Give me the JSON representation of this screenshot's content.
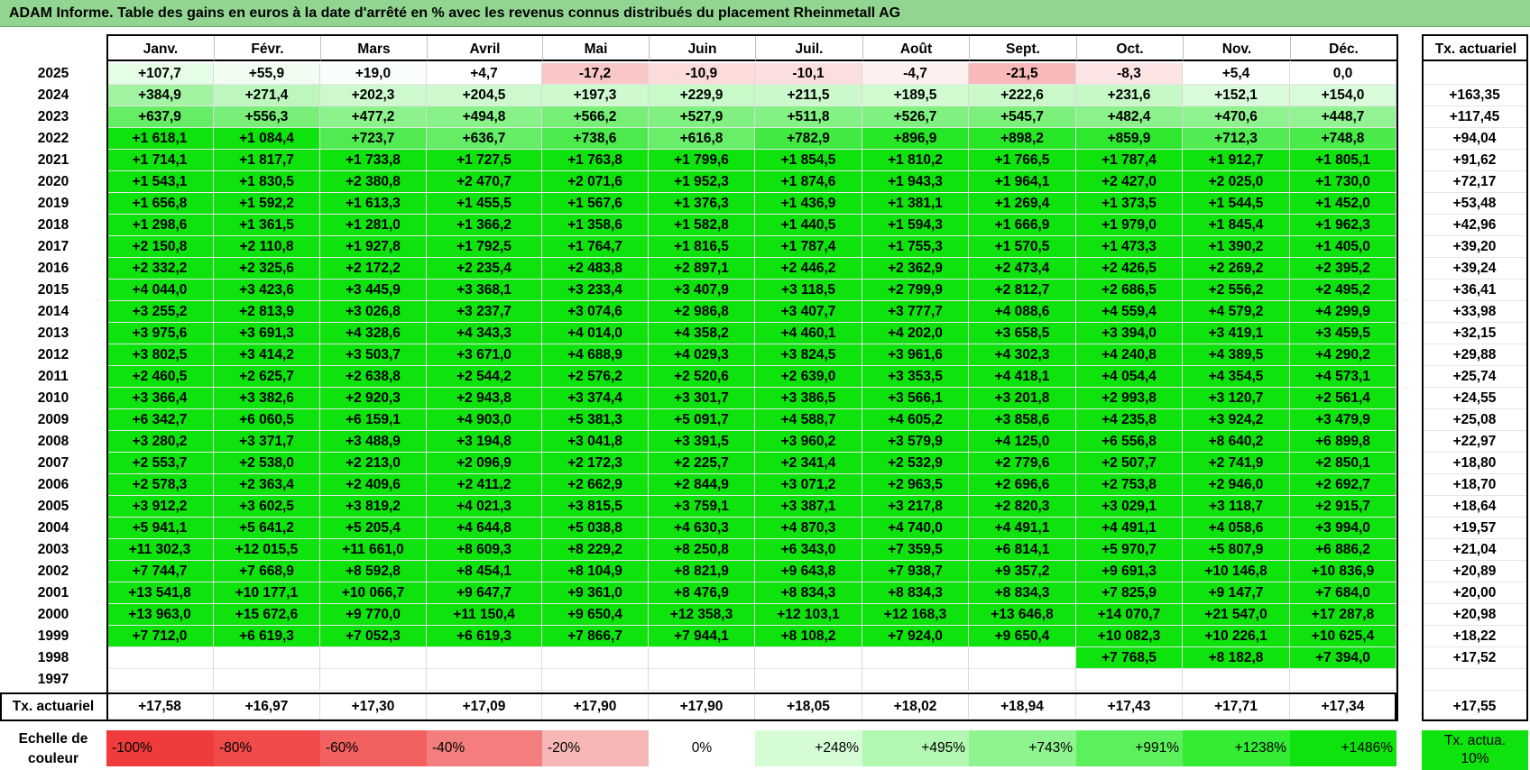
{
  "title": "ADAM Informe. Table des gains en euros à la date d'arrêté en % avec les revenus connus distribués du placement Rheinmetall AG",
  "months": [
    "Janv.",
    "Févr.",
    "Mars",
    "Avril",
    "Mai",
    "Juin",
    "Juil.",
    "Août",
    "Sept.",
    "Oct.",
    "Nov.",
    "Déc."
  ],
  "rate_header": "Tx. actuariel",
  "rows": [
    {
      "year": "2025",
      "values": [
        "+107,7",
        "+55,9",
        "+19,0",
        "+4,7",
        "-17,2",
        "-10,9",
        "-10,1",
        "-4,7",
        "-21,5",
        "-8,3",
        "+5,4",
        "0,0"
      ],
      "rate": ""
    },
    {
      "year": "2024",
      "values": [
        "+384,9",
        "+271,4",
        "+202,3",
        "+204,5",
        "+197,3",
        "+229,9",
        "+211,5",
        "+189,5",
        "+222,6",
        "+231,6",
        "+152,1",
        "+154,0"
      ],
      "rate": "+163,35"
    },
    {
      "year": "2023",
      "values": [
        "+637,9",
        "+556,3",
        "+477,2",
        "+494,8",
        "+566,2",
        "+527,9",
        "+511,8",
        "+526,7",
        "+545,7",
        "+482,4",
        "+470,6",
        "+448,7"
      ],
      "rate": "+117,45"
    },
    {
      "year": "2022",
      "values": [
        "+1 618,1",
        "+1 084,4",
        "+723,7",
        "+636,7",
        "+738,6",
        "+616,8",
        "+782,9",
        "+896,9",
        "+898,2",
        "+859,9",
        "+712,3",
        "+748,8"
      ],
      "rate": "+94,04"
    },
    {
      "year": "2021",
      "values": [
        "+1 714,1",
        "+1 817,7",
        "+1 733,8",
        "+1 727,5",
        "+1 763,8",
        "+1 799,6",
        "+1 854,5",
        "+1 810,2",
        "+1 766,5",
        "+1 787,4",
        "+1 912,7",
        "+1 805,1"
      ],
      "rate": "+91,62"
    },
    {
      "year": "2020",
      "values": [
        "+1 543,1",
        "+1 830,5",
        "+2 380,8",
        "+2 470,7",
        "+2 071,6",
        "+1 952,3",
        "+1 874,6",
        "+1 943,3",
        "+1 964,1",
        "+2 427,0",
        "+2 025,0",
        "+1 730,0"
      ],
      "rate": "+72,17"
    },
    {
      "year": "2019",
      "values": [
        "+1 656,8",
        "+1 592,2",
        "+1 613,3",
        "+1 455,5",
        "+1 567,6",
        "+1 376,3",
        "+1 436,9",
        "+1 381,1",
        "+1 269,4",
        "+1 373,5",
        "+1 544,5",
        "+1 452,0"
      ],
      "rate": "+53,48"
    },
    {
      "year": "2018",
      "values": [
        "+1 298,6",
        "+1 361,5",
        "+1 281,0",
        "+1 366,2",
        "+1 358,6",
        "+1 582,8",
        "+1 440,5",
        "+1 594,3",
        "+1 666,9",
        "+1 979,0",
        "+1 845,4",
        "+1 962,3"
      ],
      "rate": "+42,96"
    },
    {
      "year": "2017",
      "values": [
        "+2 150,8",
        "+2 110,8",
        "+1 927,8",
        "+1 792,5",
        "+1 764,7",
        "+1 816,5",
        "+1 787,4",
        "+1 755,3",
        "+1 570,5",
        "+1 473,3",
        "+1 390,2",
        "+1 405,0"
      ],
      "rate": "+39,20"
    },
    {
      "year": "2016",
      "values": [
        "+2 332,2",
        "+2 325,6",
        "+2 172,2",
        "+2 235,4",
        "+2 483,8",
        "+2 897,1",
        "+2 446,2",
        "+2 362,9",
        "+2 473,4",
        "+2 426,5",
        "+2 269,2",
        "+2 395,2"
      ],
      "rate": "+39,24"
    },
    {
      "year": "2015",
      "values": [
        "+4 044,0",
        "+3 423,6",
        "+3 445,9",
        "+3 368,1",
        "+3 233,4",
        "+3 407,9",
        "+3 118,5",
        "+2 799,9",
        "+2 812,7",
        "+2 686,5",
        "+2 556,2",
        "+2 495,2"
      ],
      "rate": "+36,41"
    },
    {
      "year": "2014",
      "values": [
        "+3 255,2",
        "+2 813,9",
        "+3 026,8",
        "+3 237,7",
        "+3 074,6",
        "+2 986,8",
        "+3 407,7",
        "+3 777,7",
        "+4 088,6",
        "+4 559,4",
        "+4 579,2",
        "+4 299,9"
      ],
      "rate": "+33,98"
    },
    {
      "year": "2013",
      "values": [
        "+3 975,6",
        "+3 691,3",
        "+4 328,6",
        "+4 343,3",
        "+4 014,0",
        "+4 358,2",
        "+4 460,1",
        "+4 202,0",
        "+3 658,5",
        "+3 394,0",
        "+3 419,1",
        "+3 459,5"
      ],
      "rate": "+32,15"
    },
    {
      "year": "2012",
      "values": [
        "+3 802,5",
        "+3 414,2",
        "+3 503,7",
        "+3 671,0",
        "+4 688,9",
        "+4 029,3",
        "+3 824,5",
        "+3 961,6",
        "+4 302,3",
        "+4 240,8",
        "+4 389,5",
        "+4 290,2"
      ],
      "rate": "+29,88"
    },
    {
      "year": "2011",
      "values": [
        "+2 460,5",
        "+2 625,7",
        "+2 638,8",
        "+2 544,2",
        "+2 576,2",
        "+2 520,6",
        "+2 639,0",
        "+3 353,5",
        "+4 418,1",
        "+4 054,4",
        "+4 354,5",
        "+4 573,1"
      ],
      "rate": "+25,74"
    },
    {
      "year": "2010",
      "values": [
        "+3 366,4",
        "+3 382,6",
        "+2 920,3",
        "+2 943,8",
        "+3 374,4",
        "+3 301,7",
        "+3 386,5",
        "+3 566,1",
        "+3 201,8",
        "+2 993,8",
        "+3 120,7",
        "+2 561,4"
      ],
      "rate": "+24,55"
    },
    {
      "year": "2009",
      "values": [
        "+6 342,7",
        "+6 060,5",
        "+6 159,1",
        "+4 903,0",
        "+5 381,3",
        "+5 091,7",
        "+4 588,7",
        "+4 605,2",
        "+3 858,6",
        "+4 235,8",
        "+3 924,2",
        "+3 479,9"
      ],
      "rate": "+25,08"
    },
    {
      "year": "2008",
      "values": [
        "+3 280,2",
        "+3 371,7",
        "+3 488,9",
        "+3 194,8",
        "+3 041,8",
        "+3 391,5",
        "+3 960,2",
        "+3 579,9",
        "+4 125,0",
        "+6 556,8",
        "+8 640,2",
        "+6 899,8"
      ],
      "rate": "+22,97"
    },
    {
      "year": "2007",
      "values": [
        "+2 553,7",
        "+2 538,0",
        "+2 213,0",
        "+2 096,9",
        "+2 172,3",
        "+2 225,7",
        "+2 341,4",
        "+2 532,9",
        "+2 779,6",
        "+2 507,7",
        "+2 741,9",
        "+2 850,1"
      ],
      "rate": "+18,80"
    },
    {
      "year": "2006",
      "values": [
        "+2 578,3",
        "+2 363,4",
        "+2 409,6",
        "+2 411,2",
        "+2 662,9",
        "+2 844,9",
        "+3 071,2",
        "+2 963,5",
        "+2 696,6",
        "+2 753,8",
        "+2 946,0",
        "+2 692,7"
      ],
      "rate": "+18,70"
    },
    {
      "year": "2005",
      "values": [
        "+3 912,2",
        "+3 602,5",
        "+3 819,2",
        "+4 021,3",
        "+3 815,5",
        "+3 759,1",
        "+3 387,1",
        "+3 217,8",
        "+2 820,3",
        "+3 029,1",
        "+3 118,7",
        "+2 915,7"
      ],
      "rate": "+18,64"
    },
    {
      "year": "2004",
      "values": [
        "+5 941,1",
        "+5 641,2",
        "+5 205,4",
        "+4 644,8",
        "+5 038,8",
        "+4 630,3",
        "+4 870,3",
        "+4 740,0",
        "+4 491,1",
        "+4 491,1",
        "+4 058,6",
        "+3 994,0"
      ],
      "rate": "+19,57"
    },
    {
      "year": "2003",
      "values": [
        "+11 302,3",
        "+12 015,5",
        "+11 661,0",
        "+8 609,3",
        "+8 229,2",
        "+8 250,8",
        "+6 343,0",
        "+7 359,5",
        "+6 814,1",
        "+5 970,7",
        "+5 807,9",
        "+6 886,2"
      ],
      "rate": "+21,04"
    },
    {
      "year": "2002",
      "values": [
        "+7 744,7",
        "+7 668,9",
        "+8 592,8",
        "+8 454,1",
        "+8 104,9",
        "+8 821,9",
        "+9 643,8",
        "+7 938,7",
        "+9 357,2",
        "+9 691,3",
        "+10 146,8",
        "+10 836,9"
      ],
      "rate": "+20,89"
    },
    {
      "year": "2001",
      "values": [
        "+13 541,8",
        "+10 177,1",
        "+10 066,7",
        "+9 647,7",
        "+9 361,0",
        "+8 476,9",
        "+8 834,3",
        "+8 834,3",
        "+8 834,3",
        "+7 825,9",
        "+9 147,7",
        "+7 684,0"
      ],
      "rate": "+20,00"
    },
    {
      "year": "2000",
      "values": [
        "+13 963,0",
        "+15 672,6",
        "+9 770,0",
        "+11 150,4",
        "+9 650,4",
        "+12 358,3",
        "+12 103,1",
        "+12 168,3",
        "+13 646,8",
        "+14 070,7",
        "+21 547,0",
        "+17 287,8"
      ],
      "rate": "+20,98"
    },
    {
      "year": "1999",
      "values": [
        "+7 712,0",
        "+6 619,3",
        "+7 052,3",
        "+6 619,3",
        "+7 866,7",
        "+7 944,1",
        "+8 108,2",
        "+7 924,0",
        "+9 650,4",
        "+10 082,3",
        "+10 226,1",
        "+10 625,4"
      ],
      "rate": "+18,22"
    },
    {
      "year": "1998",
      "values": [
        "",
        "",
        "",
        "",
        "",
        "",
        "",
        "",
        "",
        "+7 768,5",
        "+8 182,8",
        "+7 394,0"
      ],
      "rate": "+17,52"
    },
    {
      "year": "1997",
      "values": [
        "",
        "",
        "",
        "",
        "",
        "",
        "",
        "",
        "",
        "",
        "",
        ""
      ],
      "rate": ""
    }
  ],
  "footer": {
    "label": "Tx. actuariel",
    "values": [
      "+17,58",
      "+16,97",
      "+17,30",
      "+17,09",
      "+17,90",
      "+17,90",
      "+18,05",
      "+18,02",
      "+18,94",
      "+17,43",
      "+17,71",
      "+17,34"
    ],
    "rate": "+17,55"
  },
  "scale": {
    "label": "Echelle de couleur",
    "items": [
      {
        "text": "-100%",
        "color": "#ef3b3b",
        "align": "left"
      },
      {
        "text": "-80%",
        "color": "#f04a4a",
        "align": "left"
      },
      {
        "text": "-60%",
        "color": "#f26060",
        "align": "left"
      },
      {
        "text": "-40%",
        "color": "#f47d7d",
        "align": "left"
      },
      {
        "text": "-20%",
        "color": "#f8b7b7",
        "align": "left"
      },
      {
        "text": "0%",
        "color": "#ffffff",
        "align": "center"
      },
      {
        "text": "+248%",
        "color": "#d5fcd5",
        "align": "right"
      },
      {
        "text": "+495%",
        "color": "#b2f8b2",
        "align": "right"
      },
      {
        "text": "+743%",
        "color": "#8ff48f",
        "align": "right"
      },
      {
        "text": "+991%",
        "color": "#5df05d",
        "align": "right"
      },
      {
        "text": "+1238%",
        "color": "#33ec33",
        "align": "right"
      },
      {
        "text": "+1486%",
        "color": "#0ee30e",
        "align": "right"
      }
    ],
    "legend": "Tx. actua. 10%",
    "legend_color": "#0ee30e"
  },
  "colors": {
    "green": "#0ee30e",
    "negative": "#ef3b3b",
    "white": "#ffffff"
  }
}
